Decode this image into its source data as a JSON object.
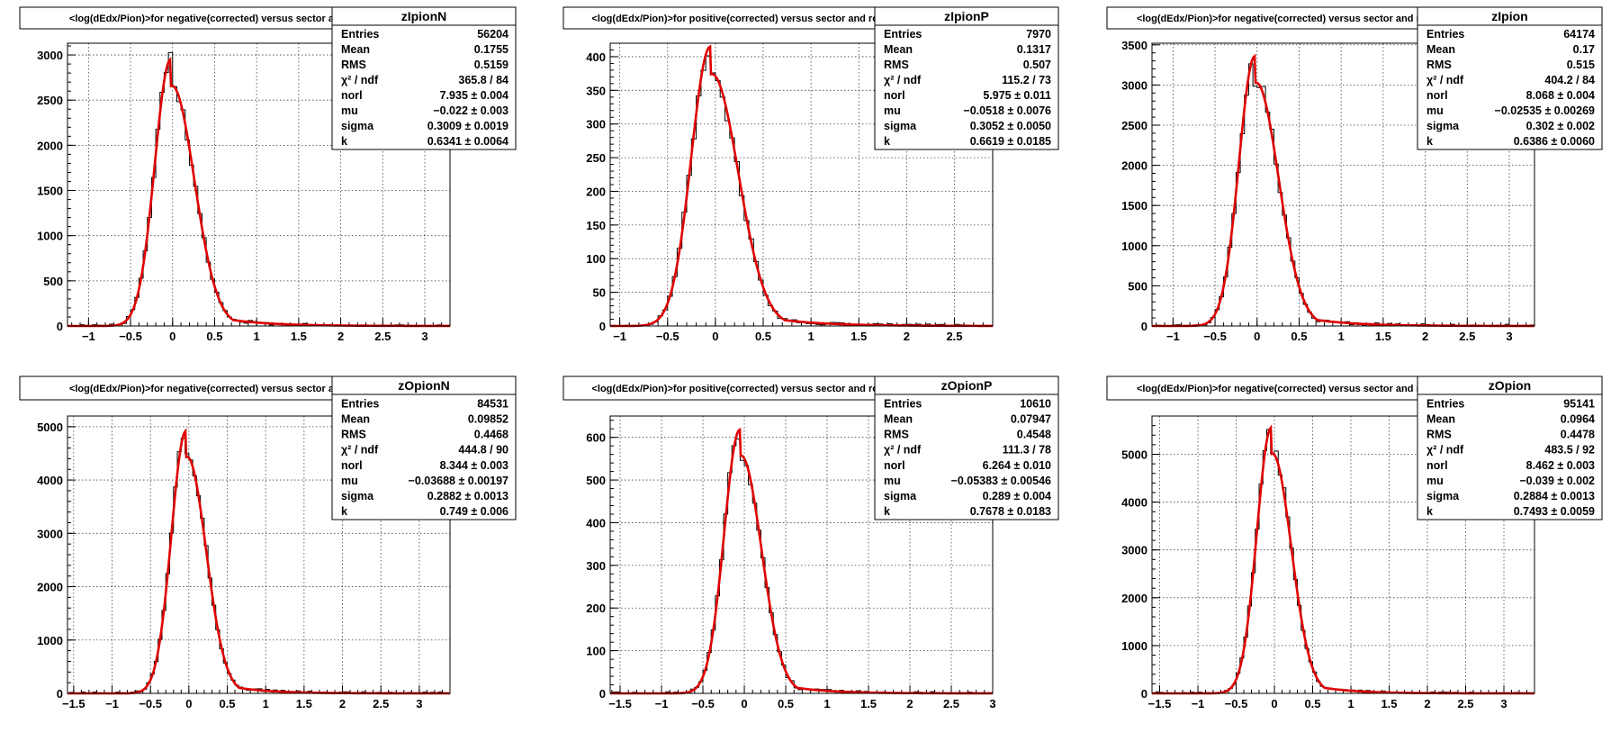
{
  "chart_data": [
    {
      "type": "bar",
      "title": "<log(dEdx/Pion)>for negative(corrected) versus sector and row",
      "stats_name": "zIpionN",
      "stats": [
        {
          "label": "Entries",
          "value": "56204"
        },
        {
          "label": "Mean",
          "value": "0.1755"
        },
        {
          "label": "RMS",
          "value": "0.5159"
        },
        {
          "label": "χ² / ndf",
          "value": "365.8 / 84"
        },
        {
          "label": "norl",
          "value": "7.935 ± 0.004"
        },
        {
          "label": "mu",
          "value": "−0.022 ± 0.003"
        },
        {
          "label": "sigma",
          "value": "0.3009 ± 0.0019"
        },
        {
          "label": "k",
          "value": "0.6341 ± 0.0064"
        }
      ],
      "xlim": [
        -1.25,
        3.3
      ],
      "ylim": [
        0,
        3130
      ],
      "xticks": [
        "−1",
        "−0.5",
        "0",
        "0.5",
        "1",
        "1.5",
        "2",
        "2.5",
        "3"
      ],
      "xtick_values": [
        -1,
        -0.5,
        0,
        0.5,
        1,
        1.5,
        2,
        2.5,
        3
      ],
      "yticks": [
        "0",
        "500",
        "1000",
        "1500",
        "2000",
        "2500",
        "3000"
      ],
      "ytick_values": [
        0,
        500,
        1000,
        1500,
        2000,
        2500,
        3000
      ],
      "fit": {
        "peak": 2950,
        "mu": -0.022,
        "sigma_left": 0.19,
        "sigma_right": 0.27,
        "tail": 0.5
      },
      "bin_width": 0.05,
      "hist_range": [
        -1.2,
        3.3
      ]
    },
    {
      "type": "bar",
      "title": "<log(dEdx/Pion)>for positive(corrected) versus sector and row",
      "stats_name": "zIpionP",
      "stats": [
        {
          "label": "Entries",
          "value": "7970"
        },
        {
          "label": "Mean",
          "value": "0.1317"
        },
        {
          "label": "RMS",
          "value": "0.507"
        },
        {
          "label": "χ² / ndf",
          "value": "115.2 / 73"
        },
        {
          "label": "norl",
          "value": "5.975 ± 0.011"
        },
        {
          "label": "mu",
          "value": "−0.0518 ± 0.0076"
        },
        {
          "label": "sigma",
          "value": "0.3052 ± 0.0050"
        },
        {
          "label": "k",
          "value": "0.6619 ± 0.0185"
        }
      ],
      "xlim": [
        -1.1,
        2.9
      ],
      "ylim": [
        0,
        420
      ],
      "xticks": [
        "−1",
        "−0.5",
        "0",
        "0.5",
        "1",
        "1.5",
        "2",
        "2.5"
      ],
      "xtick_values": [
        -1,
        -0.5,
        0,
        0.5,
        1,
        1.5,
        2,
        2.5
      ],
      "yticks": [
        "0",
        "50",
        "100",
        "150",
        "200",
        "250",
        "300",
        "350",
        "400"
      ],
      "ytick_values": [
        0,
        50,
        100,
        150,
        200,
        250,
        300,
        350,
        400
      ],
      "fit": {
        "peak": 415,
        "mu": -0.0518,
        "sigma_left": 0.2,
        "sigma_right": 0.28,
        "tail": 0.5
      },
      "bin_width": 0.05,
      "hist_range": [
        -1.1,
        2.9
      ]
    },
    {
      "type": "bar",
      "title": "<log(dEdx/Pion)>for negative(corrected) versus sector and row",
      "stats_name": "zIpion",
      "stats": [
        {
          "label": "Entries",
          "value": "64174"
        },
        {
          "label": "Mean",
          "value": "0.17"
        },
        {
          "label": "RMS",
          "value": "0.515"
        },
        {
          "label": "χ² / ndf",
          "value": "404.2 / 84"
        },
        {
          "label": "norl",
          "value": "8.068 ± 0.004"
        },
        {
          "label": "mu",
          "value": "−0.02535 ± 0.00269"
        },
        {
          "label": "sigma",
          "value": "0.302 ± 0.002"
        },
        {
          "label": "k",
          "value": "0.6386 ± 0.0060"
        }
      ],
      "xlim": [
        -1.25,
        3.3
      ],
      "ylim": [
        0,
        3520
      ],
      "xticks": [
        "−1",
        "−0.5",
        "0",
        "0.5",
        "1",
        "1.5",
        "2",
        "2.5",
        "3"
      ],
      "xtick_values": [
        -1,
        -0.5,
        0,
        0.5,
        1,
        1.5,
        2,
        2.5,
        3
      ],
      "yticks": [
        "0",
        "500",
        "1000",
        "1500",
        "2000",
        "2500",
        "3000",
        "3500"
      ],
      "ytick_values": [
        0,
        500,
        1000,
        1500,
        2000,
        2500,
        3000,
        3500
      ],
      "fit": {
        "peak": 3360,
        "mu": -0.02535,
        "sigma_left": 0.19,
        "sigma_right": 0.27,
        "tail": 0.5
      },
      "bin_width": 0.05,
      "hist_range": [
        -1.2,
        3.3
      ]
    },
    {
      "type": "bar",
      "title": "<log(dEdx/Pion)>for negative(corrected) versus sector and row",
      "stats_name": "zOpionN",
      "stats": [
        {
          "label": "Entries",
          "value": "84531"
        },
        {
          "label": "Mean",
          "value": "0.09852"
        },
        {
          "label": "RMS",
          "value": "0.4468"
        },
        {
          "label": "χ² / ndf",
          "value": "444.8 / 90"
        },
        {
          "label": "norl",
          "value": "8.344 ± 0.003"
        },
        {
          "label": "mu",
          "value": "−0.03688 ± 0.00197"
        },
        {
          "label": "sigma",
          "value": "0.2882 ± 0.0013"
        },
        {
          "label": "k",
          "value": "0.749 ± 0.006"
        }
      ],
      "xlim": [
        -1.58,
        3.4
      ],
      "ylim": [
        0,
        5200
      ],
      "xticks": [
        "−1.5",
        "−1",
        "−0.5",
        "0",
        "0.5",
        "1",
        "1.5",
        "2",
        "2.5",
        "3"
      ],
      "xtick_values": [
        -1.5,
        -1,
        -0.5,
        0,
        0.5,
        1,
        1.5,
        2,
        2.5,
        3
      ],
      "yticks": [
        "0",
        "1000",
        "2000",
        "3000",
        "4000",
        "5000"
      ],
      "ytick_values": [
        0,
        1000,
        2000,
        3000,
        4000,
        5000
      ],
      "fit": {
        "peak": 4920,
        "mu": -0.03688,
        "sigma_left": 0.19,
        "sigma_right": 0.25,
        "tail": 0.45
      },
      "bin_width": 0.05,
      "hist_range": [
        -1.55,
        3.4
      ]
    },
    {
      "type": "bar",
      "title": "<log(dEdx/Pion)>for positive(corrected) versus sector and row",
      "stats_name": "zOpionP",
      "stats": [
        {
          "label": "Entries",
          "value": "10610"
        },
        {
          "label": "Mean",
          "value": "0.07947"
        },
        {
          "label": "RMS",
          "value": "0.4548"
        },
        {
          "label": "χ² / ndf",
          "value": "111.3 / 78"
        },
        {
          "label": "norl",
          "value": "6.264 ± 0.010"
        },
        {
          "label": "mu",
          "value": "−0.05383 ± 0.00546"
        },
        {
          "label": "sigma",
          "value": "0.289 ± 0.004"
        },
        {
          "label": "k",
          "value": "0.7678 ± 0.0183"
        }
      ],
      "xlim": [
        -1.62,
        3.0
      ],
      "ylim": [
        0,
        650
      ],
      "xticks": [
        "−1.5",
        "−1",
        "−0.5",
        "0",
        "0.5",
        "1",
        "1.5",
        "2",
        "2.5",
        "3"
      ],
      "xtick_values": [
        -1.5,
        -1,
        -0.5,
        0,
        0.5,
        1,
        1.5,
        2,
        2.5,
        3
      ],
      "yticks": [
        "0",
        "100",
        "200",
        "300",
        "400",
        "500",
        "600"
      ],
      "ytick_values": [
        0,
        100,
        200,
        300,
        400,
        500,
        600
      ],
      "fit": {
        "peak": 618,
        "mu": -0.05383,
        "sigma_left": 0.19,
        "sigma_right": 0.25,
        "tail": 0.45
      },
      "bin_width": 0.05,
      "hist_range": [
        -1.6,
        3.0
      ]
    },
    {
      "type": "bar",
      "title": "<log(dEdx/Pion)>for negative(corrected) versus sector and row",
      "stats_name": "zOpion",
      "stats": [
        {
          "label": "Entries",
          "value": "95141"
        },
        {
          "label": "Mean",
          "value": "0.0964"
        },
        {
          "label": "RMS",
          "value": "0.4478"
        },
        {
          "label": "χ² / ndf",
          "value": "483.5 / 92"
        },
        {
          "label": "norl",
          "value": "8.462 ± 0.003"
        },
        {
          "label": "mu",
          "value": "−0.039 ± 0.002"
        },
        {
          "label": "sigma",
          "value": "0.2884 ± 0.0013"
        },
        {
          "label": "k",
          "value": "0.7493 ± 0.0059"
        }
      ],
      "xlim": [
        -1.6,
        3.4
      ],
      "ylim": [
        0,
        5800
      ],
      "xticks": [
        "−1.5",
        "−1",
        "−0.5",
        "0",
        "0.5",
        "1",
        "1.5",
        "2",
        "2.5",
        "3"
      ],
      "xtick_values": [
        -1.5,
        -1,
        -0.5,
        0,
        0.5,
        1,
        1.5,
        2,
        2.5,
        3
      ],
      "yticks": [
        "0",
        "1000",
        "2000",
        "3000",
        "4000",
        "5000"
      ],
      "ytick_values": [
        0,
        1000,
        2000,
        3000,
        4000,
        5000
      ],
      "fit": {
        "peak": 5560,
        "mu": -0.039,
        "sigma_left": 0.19,
        "sigma_right": 0.25,
        "tail": 0.45
      },
      "bin_width": 0.05,
      "hist_range": [
        -1.55,
        3.4
      ]
    }
  ],
  "colors": {
    "fit_line": "#e00000",
    "histogram": "#000000",
    "background": "#ffffff"
  }
}
